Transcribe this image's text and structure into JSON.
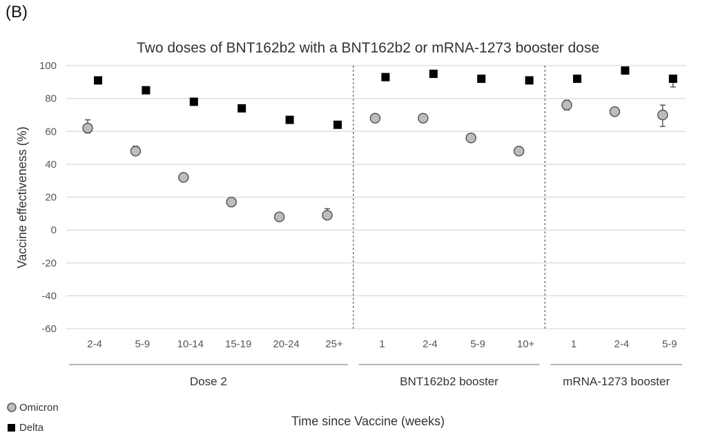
{
  "panel_label": "(B)",
  "chart_data": {
    "type": "scatter",
    "title": "Two doses of BNT162b2 with a BNT162b2 or mRNA-1273 booster dose",
    "xlabel": "Time since Vaccine (weeks)",
    "ylabel": "Vaccine effectiveness (%)",
    "ylim": [
      -60,
      100
    ],
    "yticks": [
      -60,
      -40,
      -20,
      0,
      20,
      40,
      60,
      80,
      100
    ],
    "grid": true,
    "legend_position": "bottom-left",
    "categories": [
      "2-4",
      "5-9",
      "10-14",
      "15-19",
      "20-24",
      "25+",
      "1",
      "2-4",
      "5-9",
      "10+",
      "1",
      "2-4",
      "5-9"
    ],
    "groups": [
      {
        "label": "Dose 2",
        "count": 6
      },
      {
        "label": "BNT162b2 booster",
        "count": 4
      },
      {
        "label": "mRNA-1273 booster",
        "count": 3
      }
    ],
    "series": [
      {
        "name": "Omicron",
        "marker": "circle",
        "color": "#bdbdbd",
        "values": [
          62,
          48,
          32,
          17,
          8,
          9,
          68,
          68,
          56,
          48,
          76,
          72,
          70
        ],
        "err_low": [
          59,
          46,
          31,
          16,
          7,
          7,
          67,
          67,
          55,
          47,
          73,
          70,
          63
        ],
        "err_high": [
          67,
          51,
          33,
          18,
          9,
          13,
          69,
          69,
          57,
          49,
          79,
          74,
          76
        ]
      },
      {
        "name": "Delta",
        "marker": "square",
        "color": "#000000",
        "values": [
          91,
          85,
          78,
          74,
          67,
          64,
          93,
          95,
          92,
          91,
          92,
          97,
          92
        ],
        "err_low": [
          90,
          84,
          77,
          73,
          66,
          63,
          92,
          94,
          91,
          90,
          91,
          96,
          87
        ],
        "err_high": [
          92,
          86,
          79,
          75,
          68,
          65,
          94,
          96,
          93,
          92,
          93,
          98,
          94
        ]
      }
    ]
  },
  "legend": {
    "omicron_label": "Omicron",
    "delta_label": "Delta"
  }
}
